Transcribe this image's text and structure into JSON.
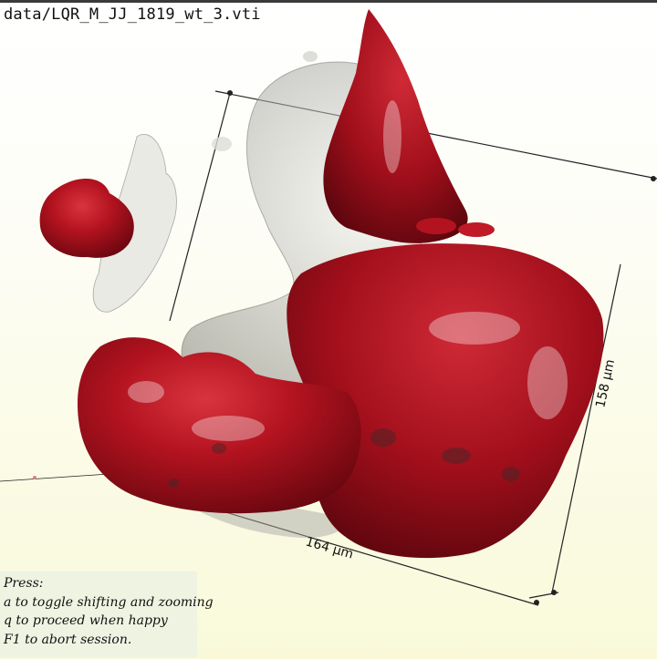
{
  "window": {
    "file_path": "data/LQR_M_JJ_1819_wt_3.vti"
  },
  "scene": {
    "background_colors": [
      "#ffffff",
      "#f9f9da"
    ],
    "surface_color": "#b0121f",
    "surface_highlight": "#d63a44",
    "translucent_surface_color": "#c8c8c8",
    "axes": {
      "width_label": "164 µm",
      "height_label": "158 µm"
    }
  },
  "help": {
    "heading": "Press:",
    "lines": [
      "a to toggle shifting and zooming",
      "q to proceed when happy",
      "F1 to abort session."
    ]
  }
}
